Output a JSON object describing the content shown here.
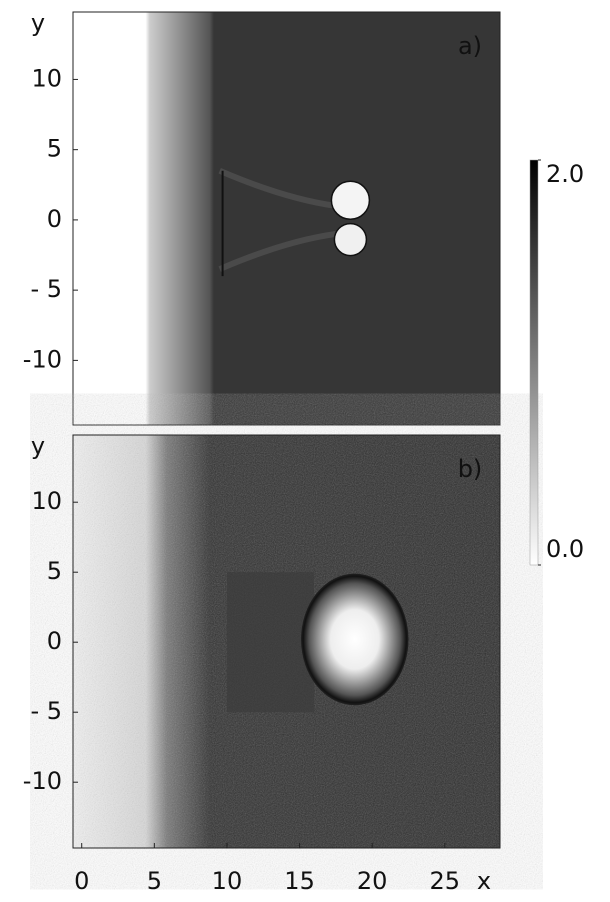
{
  "chart_data": [
    {
      "type": "heatmap",
      "panel_label": "a)",
      "ylabel": "y",
      "xlim": [
        -0.6,
        28.8
      ],
      "ylim": [
        -14.6,
        14.8
      ],
      "yticks": [
        10,
        5,
        0,
        {
          "value": -5,
          "label": "- 5"
        },
        -10
      ]
    },
    {
      "type": "heatmap",
      "panel_label": "b)",
      "ylabel": "y",
      "xlabel": "x",
      "xlim": [
        -0.6,
        28.8
      ],
      "ylim": [
        -14.7,
        14.8
      ],
      "xticks": [
        0,
        5,
        10,
        15,
        20,
        25
      ],
      "yticks": [
        10,
        5,
        0,
        {
          "value": -5,
          "label": "- 5"
        },
        -10
      ],
      "colorbar": {
        "zlim": [
          0,
          2
        ],
        "ticks": [
          {
            "value": 2,
            "label": "2.0"
          },
          {
            "value": 0,
            "label": "0.0"
          }
        ]
      }
    }
  ]
}
